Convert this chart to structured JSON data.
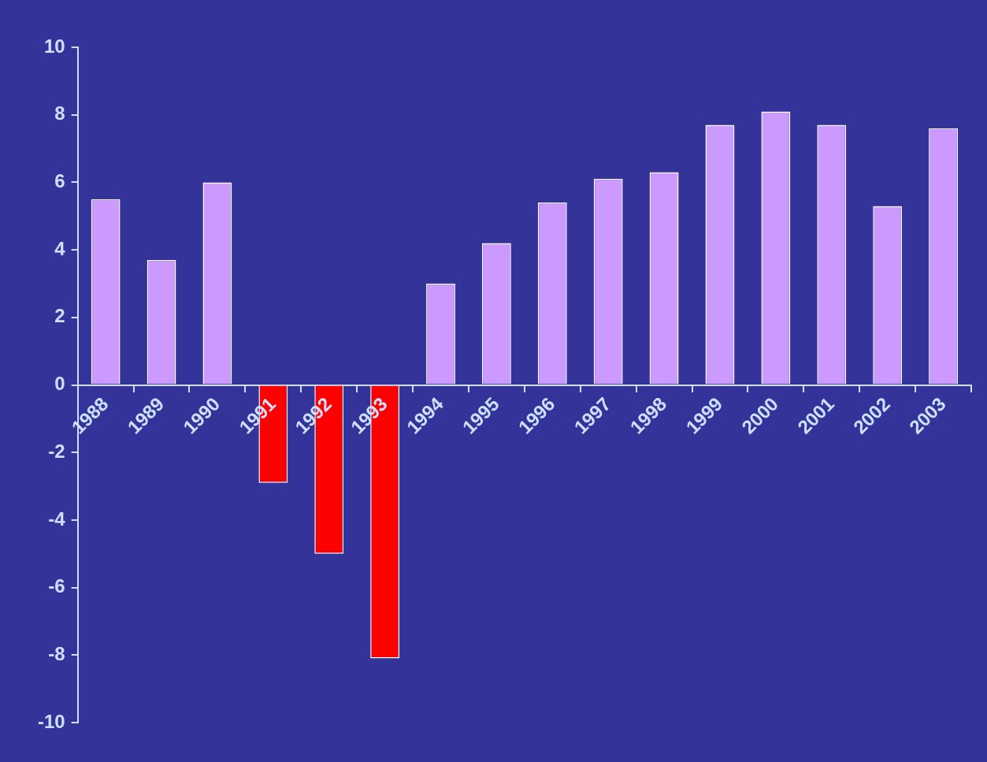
{
  "chart_data": {
    "type": "bar",
    "categories": [
      "1988",
      "1989",
      "1990",
      "1991",
      "1992",
      "1993",
      "1994",
      "1995",
      "1996",
      "1997",
      "1998",
      "1999",
      "2000",
      "2001",
      "2002",
      "2003"
    ],
    "values": [
      5.5,
      3.7,
      6.0,
      -2.9,
      -5.0,
      -8.1,
      3.0,
      4.2,
      5.4,
      6.1,
      6.3,
      7.7,
      8.1,
      7.7,
      5.3,
      7.6
    ],
    "colors": [
      "#cc99ff",
      "#cc99ff",
      "#cc99ff",
      "#ff0000",
      "#ff0000",
      "#ff0000",
      "#cc99ff",
      "#cc99ff",
      "#cc99ff",
      "#cc99ff",
      "#cc99ff",
      "#cc99ff",
      "#cc99ff",
      "#cc99ff",
      "#cc99ff",
      "#cc99ff"
    ],
    "ylim": [
      -10,
      10
    ],
    "yticks": [
      -10,
      -8,
      -6,
      -4,
      -2,
      0,
      2,
      4,
      6,
      8,
      10
    ],
    "grid": false,
    "legend": false
  }
}
